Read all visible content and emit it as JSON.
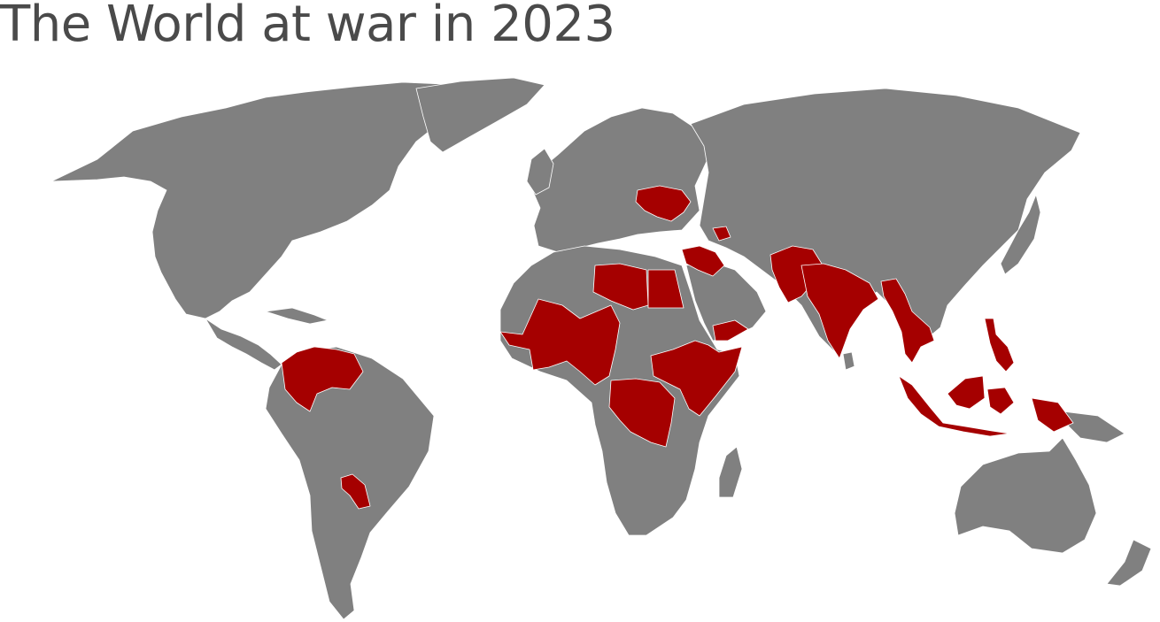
{
  "title": "The World at war in 2023",
  "colors": {
    "background": "#ffffff",
    "land": "#808080",
    "at_war": "#a50000",
    "borders": "#ffffff",
    "title_text": "#4a4a4a"
  },
  "legend": null,
  "highlighted_countries": [
    "Ukraine",
    "Azerbaijan",
    "Armenia",
    "Syria",
    "Iraq",
    "Libya",
    "Egypt",
    "Yemen",
    "Mali",
    "Niger",
    "Nigeria",
    "Burkina Faso",
    "Senegal",
    "Cameroon",
    "Central African Republic",
    "South Sudan",
    "Ethiopia",
    "Somalia",
    "Democratic Republic of the Congo",
    "Afghanistan",
    "Pakistan",
    "India",
    "Myanmar",
    "Thailand",
    "Philippines",
    "Indonesia",
    "Colombia",
    "Venezuela",
    "Paraguay"
  ]
}
